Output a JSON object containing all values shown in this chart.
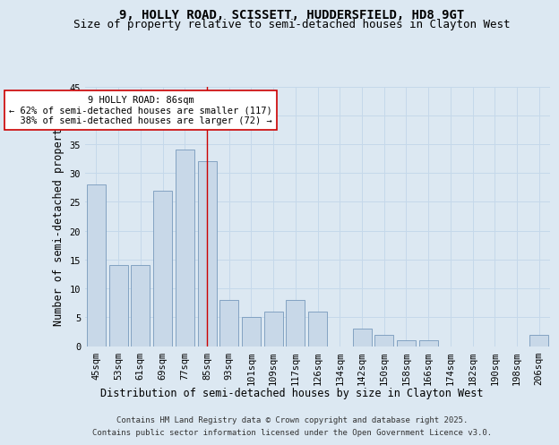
{
  "title_line1": "9, HOLLY ROAD, SCISSETT, HUDDERSFIELD, HD8 9GT",
  "title_line2": "Size of property relative to semi-detached houses in Clayton West",
  "xlabel": "Distribution of semi-detached houses by size in Clayton West",
  "ylabel": "Number of semi-detached properties",
  "categories": [
    "45sqm",
    "53sqm",
    "61sqm",
    "69sqm",
    "77sqm",
    "85sqm",
    "93sqm",
    "101sqm",
    "109sqm",
    "117sqm",
    "126sqm",
    "134sqm",
    "142sqm",
    "150sqm",
    "158sqm",
    "166sqm",
    "174sqm",
    "182sqm",
    "190sqm",
    "198sqm",
    "206sqm"
  ],
  "values": [
    28,
    14,
    14,
    27,
    34,
    32,
    8,
    5,
    6,
    8,
    6,
    0,
    3,
    2,
    1,
    1,
    0,
    0,
    0,
    0,
    2
  ],
  "bar_color": "#c8d8e8",
  "bar_edge_color": "#7799bb",
  "property_line_index": 5,
  "property_line_color": "#cc0000",
  "annotation_line1": "9 HOLLY ROAD: 86sqm",
  "annotation_line2": "← 62% of semi-detached houses are smaller (117)",
  "annotation_line3": "  38% of semi-detached houses are larger (72) →",
  "annotation_box_color": "#ffffff",
  "annotation_box_edge_color": "#cc0000",
  "ylim": [
    0,
    45
  ],
  "yticks": [
    0,
    5,
    10,
    15,
    20,
    25,
    30,
    35,
    40,
    45
  ],
  "grid_color": "#c5d8ea",
  "background_color": "#dce8f2",
  "footer_line1": "Contains HM Land Registry data © Crown copyright and database right 2025.",
  "footer_line2": "Contains public sector information licensed under the Open Government Licence v3.0.",
  "title_fontsize": 10,
  "subtitle_fontsize": 9,
  "axis_label_fontsize": 8.5,
  "tick_fontsize": 7.5,
  "annotation_fontsize": 7.5,
  "footer_fontsize": 6.5
}
